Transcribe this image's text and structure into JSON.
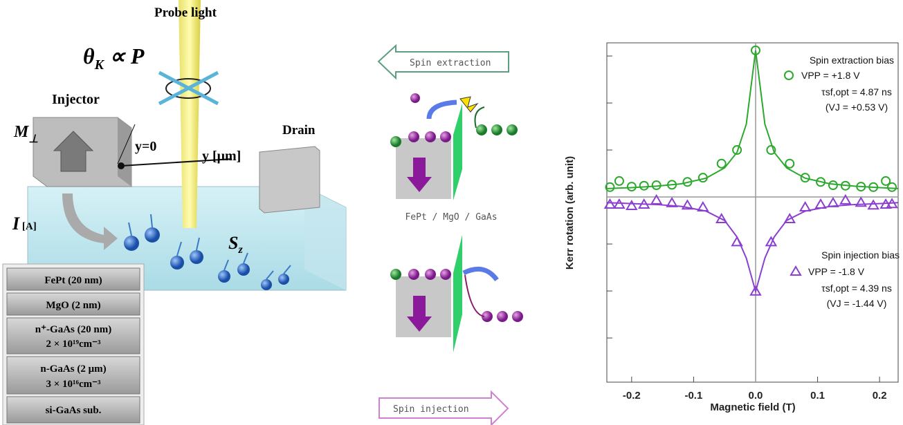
{
  "diagram": {
    "probe_light": "Probe light",
    "kerr_relation": {
      "symbol": "θ",
      "sub": "K",
      "rest": " ∝ P"
    },
    "injector": "Injector",
    "drain": "Drain",
    "magnetization": {
      "symbol": "M",
      "sub": "⊥"
    },
    "origin": "y=0",
    "y_axis": "y [μm]",
    "current": {
      "symbol": "I",
      "unit": " [A]"
    },
    "spin": {
      "symbol": "S",
      "sub": "z"
    },
    "layers": [
      {
        "name": "FePt (20 nm)"
      },
      {
        "name": "MgO (2 nm)"
      },
      {
        "name": "n⁺-GaAs (20 nm)",
        "doping": "2 × 10¹⁹cm⁻³"
      },
      {
        "name": "n-GaAs (2 μm)",
        "doping": "3 × 10¹⁶cm⁻³"
      },
      {
        "name": "si-GaAs  sub."
      }
    ]
  },
  "schematic": {
    "extraction": "Spin extraction",
    "structure": "FePt / MgO / GaAs",
    "injection": "Spin injection"
  },
  "chart_data": {
    "type": "scatter",
    "xlabel": "Magnetic field (T)",
    "ylabel": "Kerr rotation (arb. unit)",
    "xlim": [
      -0.24,
      0.23
    ],
    "ylim": [
      -3.94,
      3.28
    ],
    "xticks": [
      -0.2,
      -0.1,
      {
        "value": 0,
        "label": "0.0"
      },
      0.1,
      0.2
    ],
    "yticks": [
      -3,
      -2,
      -1,
      0,
      1,
      2,
      3
    ],
    "zero_lines": true,
    "series": [
      {
        "name": "VPP = +1.8 V",
        "color": "#2ca82c",
        "marker": "circle",
        "x": [
          -0.235,
          -0.22,
          -0.2,
          -0.18,
          -0.16,
          -0.135,
          -0.11,
          -0.085,
          -0.055,
          -0.03,
          0,
          0.025,
          0.055,
          0.08,
          0.105,
          0.125,
          0.145,
          0.17,
          0.19,
          0.21,
          0.22
        ],
        "values": [
          0.21,
          0.34,
          0.22,
          0.24,
          0.25,
          0.26,
          0.32,
          0.41,
          0.71,
          1.0,
          3.12,
          1.0,
          0.71,
          0.41,
          0.32,
          0.25,
          0.24,
          0.22,
          0.21,
          0.34,
          0.21
        ]
      },
      {
        "name": "VPP = -1.8 V",
        "color": "#8a3fd1",
        "marker": "triangle",
        "x": [
          -0.235,
          -0.22,
          -0.2,
          -0.18,
          -0.16,
          -0.135,
          -0.11,
          -0.085,
          -0.055,
          -0.03,
          0,
          0.025,
          0.055,
          0.08,
          0.105,
          0.125,
          0.145,
          0.17,
          0.19,
          0.21,
          0.22
        ],
        "values": [
          -0.16,
          -0.16,
          -0.19,
          -0.16,
          -0.07,
          -0.13,
          -0.18,
          -0.22,
          -0.47,
          -0.96,
          -2.01,
          -0.96,
          -0.47,
          -0.22,
          -0.16,
          -0.13,
          -0.07,
          -0.12,
          -0.18,
          -0.16,
          -0.15
        ]
      },
      {
        "color": "#2ca82c",
        "marker": "line",
        "x": [
          -0.24,
          -0.2,
          -0.16,
          -0.12,
          -0.08,
          -0.05,
          -0.03,
          -0.015,
          0,
          0.015,
          0.03,
          0.05,
          0.08,
          0.12,
          0.16,
          0.2,
          0.23
        ],
        "values": [
          0.18,
          0.2,
          0.23,
          0.28,
          0.4,
          0.62,
          0.95,
          1.55,
          3.12,
          1.55,
          0.95,
          0.62,
          0.4,
          0.28,
          0.23,
          0.2,
          0.18
        ]
      },
      {
        "color": "#8a3fd1",
        "marker": "line",
        "x": [
          -0.24,
          -0.2,
          -0.16,
          -0.12,
          -0.08,
          -0.05,
          -0.03,
          -0.015,
          0,
          0.015,
          0.03,
          0.05,
          0.08,
          0.12,
          0.16,
          0.2,
          0.23
        ],
        "values": [
          -0.12,
          -0.14,
          -0.16,
          -0.2,
          -0.3,
          -0.5,
          -0.85,
          -1.3,
          -2.01,
          -1.3,
          -0.85,
          -0.5,
          -0.3,
          -0.2,
          -0.16,
          -0.14,
          -0.12
        ]
      }
    ],
    "annotations": [
      {
        "title": "Spin extraction bias",
        "lines": [
          "τsf,opt = 4.87 ns",
          "(VJ = +0.53 V)"
        ]
      },
      {
        "title": "Spin injection bias",
        "lines": [
          "τsf,opt = 4.39 ns",
          "(VJ = -1.44 V)"
        ]
      }
    ]
  }
}
